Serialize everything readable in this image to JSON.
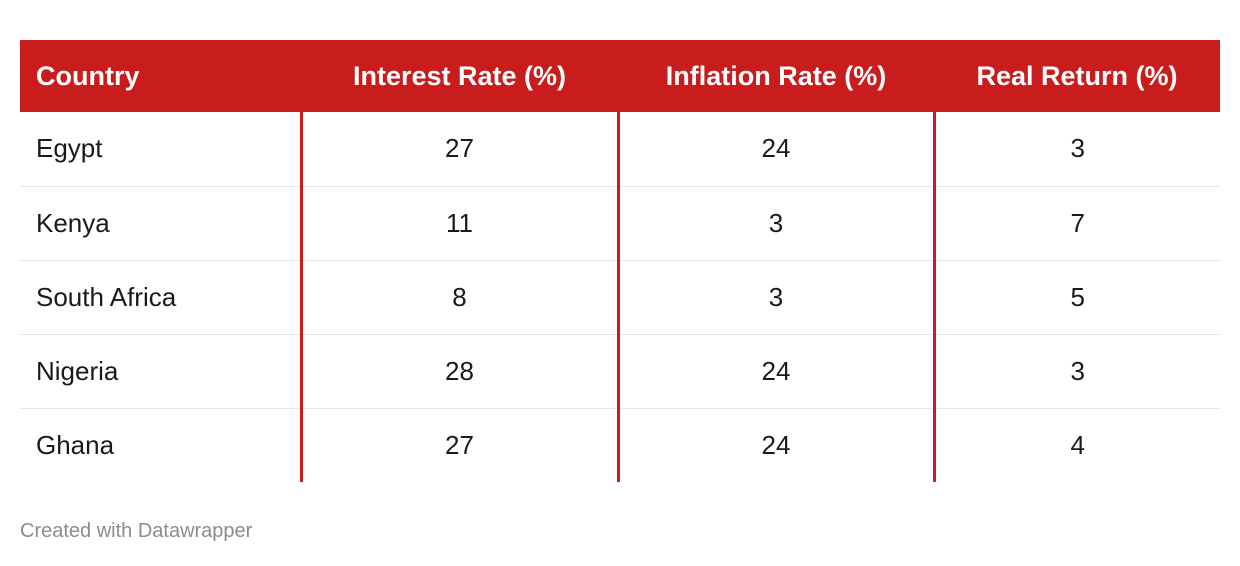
{
  "table": {
    "headers": [
      "Country",
      "Interest Rate (%)",
      "Inflation Rate (%)",
      "Real Return (%)"
    ],
    "rows": [
      [
        "Egypt",
        "27",
        "24",
        "3"
      ],
      [
        "Kenya",
        "11",
        "3",
        "7"
      ],
      [
        "South Africa",
        "8",
        "3",
        "5"
      ],
      [
        "Nigeria",
        "28",
        "24",
        "3"
      ],
      [
        "Ghana",
        "27",
        "24",
        "4"
      ]
    ]
  },
  "colors": {
    "header_background": "#c91c1c",
    "header_text": "#ffffff",
    "column_divider": "#c91c1c"
  },
  "footer": {
    "credit": "Created with Datawrapper"
  }
}
